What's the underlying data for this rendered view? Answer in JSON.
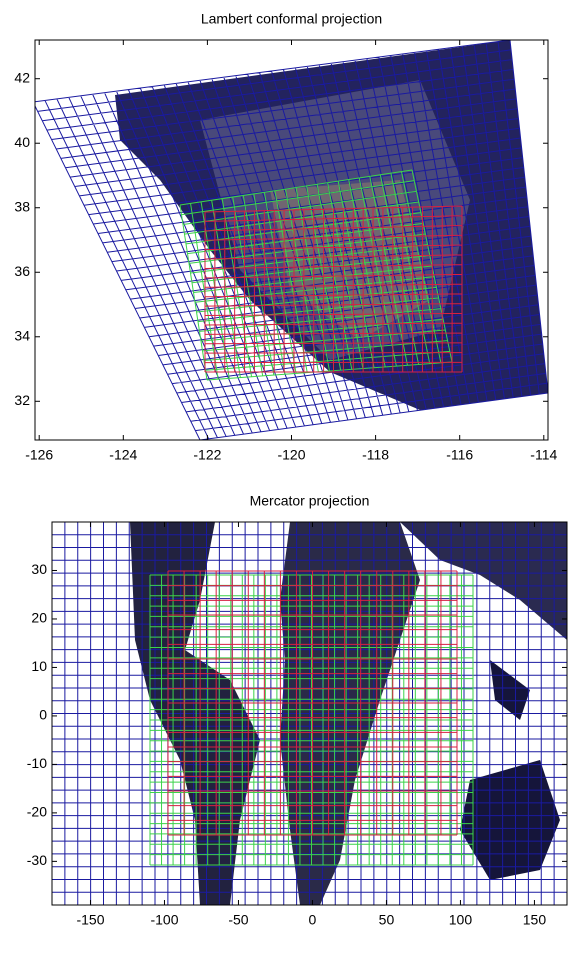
{
  "chart_data": [
    {
      "type": "map",
      "title": "Lambert conformal projection",
      "xlim": [
        -126.1,
        -113.9
      ],
      "ylim": [
        30.8,
        43.2
      ],
      "xticks": [
        -126,
        -124,
        -122,
        -120,
        -118,
        -116,
        -114
      ],
      "yticks": [
        32,
        34,
        36,
        38,
        40,
        42
      ]
    },
    {
      "type": "map",
      "title": "Mercator projection",
      "xlim": [
        -176,
        172
      ],
      "ylim": [
        -39,
        40
      ],
      "xticks": [
        -150,
        -100,
        -50,
        0,
        50,
        100,
        150
      ],
      "yticks": [
        -30,
        -20,
        -10,
        0,
        10,
        20,
        30
      ]
    }
  ]
}
